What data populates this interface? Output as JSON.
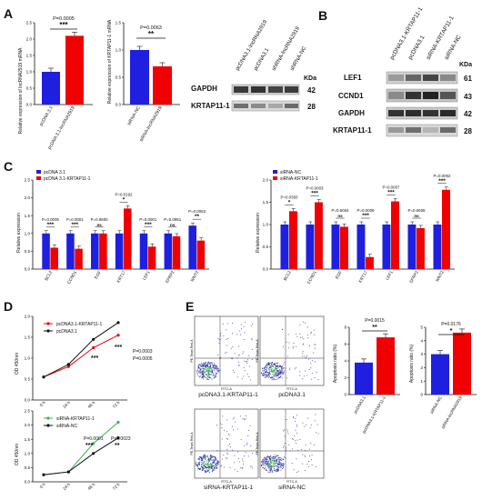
{
  "panels": {
    "A": "A",
    "B": "B",
    "C": "C",
    "D": "D",
    "E": "E"
  },
  "colors": {
    "blue": "#1f1fe0",
    "red": "#f00000",
    "green": "#39b54a",
    "black": "#111111",
    "dots": "#2f3a9e"
  },
  "a": {
    "chart1": {
      "ylabel": "Relative expression of lncRNA2919 mRNA",
      "categories": [
        "pcDNA 3.1",
        "pcDNA 3.1-lncRNA2919"
      ],
      "ticks": [
        "0.0",
        "0.5",
        "1.0",
        "1.5",
        "2.0",
        "2.5"
      ],
      "p": "P=0.0005",
      "stars": "***"
    },
    "chart2": {
      "ylabel": "Relative expression of KRTAP11-1 mRNA",
      "categories": [
        "siRNA-NC",
        "siRNA-lncRNA2919"
      ],
      "ticks": [
        "0.0",
        "0.5",
        "1.0",
        "1.5"
      ],
      "p": "P=0.0063",
      "stars": "**"
    },
    "blot": {
      "columns": [
        "pcDNA3.1-lncRNA2919",
        "pcDNA3.1",
        "shRNA-lncRNA2919",
        "shRNA-NC"
      ],
      "kda_label": "KDa",
      "rows": [
        {
          "label": "GAPDH",
          "kda": "42"
        },
        {
          "label": "KRTAP11-1",
          "kda": "28"
        }
      ]
    }
  },
  "b": {
    "columns": [
      "pcDNA3.1-KRTAP11-1",
      "pcDNA3.1",
      "siRNA-KRTAP11-1",
      "siRNA-NC"
    ],
    "kda_label": "KDa",
    "rows": [
      {
        "label": "LEF1",
        "kda": "61"
      },
      {
        "label": "CCND1",
        "kda": "43"
      },
      {
        "label": "GAPDH",
        "kda": "42"
      },
      {
        "label": "KRTAP11-1",
        "kda": "28"
      }
    ]
  },
  "c": {
    "left": {
      "legend": [
        "pcDNA 3.1",
        "pcDNA 3.1-KRTAP11-1"
      ],
      "ylabel": "Relative expression",
      "ticks": [
        "0.0",
        "0.5",
        "1.0",
        "1.5",
        "2.0",
        "2.5"
      ],
      "categories": [
        "BCL2",
        "CCND1",
        "EGF",
        "KRT17",
        "LEF1",
        "SFRP2",
        "WNT2"
      ],
      "p": [
        "P=0.0009",
        "P=0.0001",
        "P=0.9600",
        "P=0.0192",
        "P=0.0001",
        "P=0.0951",
        "P=0.0063"
      ],
      "sig": [
        "***",
        "***",
        "ns",
        "*",
        "***",
        "ns",
        "**"
      ]
    },
    "right": {
      "legend": [
        "siRNA-NC",
        "siRNA-KRTAP11-1"
      ],
      "ylabel": "Relative expression",
      "ticks": [
        "0.0",
        "0.5",
        "1.0",
        "1.5",
        "2.0"
      ],
      "categories": [
        "BCL2",
        "CCND1",
        "EGF",
        "KRT17",
        "LEF1",
        "SFRP2",
        "WNT2"
      ],
      "p": [
        "P=0.0350",
        "P=0.0003",
        "P=0.5064",
        "P=0.0009",
        "P=0.0007",
        "P=0.6606",
        "P=0.0002"
      ],
      "sig": [
        "*",
        "***",
        "ns",
        "***",
        "***",
        "ns",
        "***"
      ]
    }
  },
  "d": {
    "top": {
      "legend": [
        "pcDNA3.1-KRTAP11-1",
        "pcDNA3.1"
      ],
      "ylabel": "OD 450nm",
      "ticks": [
        "0.0",
        "0.5",
        "1.0",
        "1.5",
        "2.0"
      ],
      "xticks": [
        "0 h",
        "24 h",
        "48 h",
        "72 h"
      ],
      "p": [
        "P=0.0003",
        "P=0.0005"
      ],
      "stars": [
        "***",
        "***"
      ]
    },
    "bottom": {
      "legend": [
        "siRNA-KRTAP11-1",
        "siRNA-NC"
      ],
      "ylabel": "OD 450nm",
      "ticks": [
        "0.0",
        "0.5",
        "1.0",
        "1.5",
        "2.0",
        "2.5"
      ],
      "xticks": [
        "0 h",
        "24 h",
        "48 h",
        "72 h"
      ],
      "p": [
        "P=0.0001",
        "P=0.0023"
      ],
      "stars": [
        "***",
        "**"
      ]
    }
  },
  "e": {
    "flow": {
      "xaxis": "FITC-A",
      "yaxis": "PE-Texas Red-A",
      "plots": [
        {
          "title": "pcDNA3.1-KRTAP11-1"
        },
        {
          "title": "pcDNA3.1"
        },
        {
          "title": "siRNA-KRTAP11-1"
        },
        {
          "title": "siRNA-NC"
        }
      ]
    },
    "bar1": {
      "ylabel": "Apoptosis ratio (%)",
      "ticks": [
        "0",
        "2",
        "4",
        "6",
        "8"
      ],
      "categories": [
        "pcDNA3.1",
        "pcDNA3.1-KRTAP11-1"
      ],
      "p": "P=0.0015",
      "stars": "**"
    },
    "bar2": {
      "ylabel": "Apoptosis ratio (%)",
      "ticks": [
        "0",
        "1",
        "2",
        "3",
        "4",
        "5"
      ],
      "categories": [
        "siRNA-NC",
        "siRNA-lncRNA2919"
      ],
      "p": "P=0.0176",
      "stars": "*"
    }
  },
  "chart_data": [
    {
      "id": "A1",
      "type": "bar",
      "categories": [
        "pcDNA 3.1",
        "pcDNA 3.1-lncRNA2919"
      ],
      "values": [
        1.0,
        2.1
      ],
      "ylim": [
        0,
        2.5
      ]
    },
    {
      "id": "A2",
      "type": "bar",
      "categories": [
        "siRNA-NC",
        "siRNA-lncRNA2919"
      ],
      "values": [
        1.0,
        0.7
      ],
      "ylim": [
        0,
        1.5
      ]
    },
    {
      "id": "C1",
      "type": "bar",
      "categories": [
        "BCL2",
        "CCND1",
        "EGF",
        "KRT17",
        "LEF1",
        "SFRP2",
        "WNT2"
      ],
      "series": [
        {
          "name": "pcDNA 3.1",
          "values": [
            1.0,
            1.0,
            1.0,
            1.0,
            1.0,
            1.0,
            1.22
          ]
        },
        {
          "name": "pcDNA 3.1-KRTAP11-1",
          "values": [
            0.6,
            0.57,
            1.0,
            1.7,
            0.63,
            0.92,
            0.8
          ]
        }
      ],
      "ylim": [
        0,
        2.5
      ]
    },
    {
      "id": "C2",
      "type": "bar",
      "categories": [
        "BCL2",
        "CCND1",
        "EGF",
        "KRT17",
        "LEF1",
        "SFRP2",
        "WNT2"
      ],
      "series": [
        {
          "name": "siRNA-NC",
          "values": [
            1.0,
            1.0,
            1.0,
            1.0,
            1.0,
            1.0,
            1.0
          ]
        },
        {
          "name": "siRNA-KRTAP11-1",
          "values": [
            1.3,
            1.5,
            0.95,
            0.27,
            1.52,
            0.92,
            1.78
          ]
        }
      ],
      "ylim": [
        0,
        2.0
      ]
    },
    {
      "id": "D1",
      "type": "line",
      "x": [
        "0 h",
        "24 h",
        "48 h",
        "72 h"
      ],
      "series": [
        {
          "name": "pcDNA3.1-KRTAP11-1",
          "values": [
            0.55,
            0.8,
            1.25,
            1.55
          ]
        },
        {
          "name": "pcDNA3.1",
          "values": [
            0.55,
            0.85,
            1.45,
            1.85
          ]
        }
      ],
      "ylim": [
        0,
        2.0
      ]
    },
    {
      "id": "D2",
      "type": "line",
      "x": [
        "0 h",
        "24 h",
        "48 h",
        "72 h"
      ],
      "series": [
        {
          "name": "siRNA-KRTAP11-1",
          "values": [
            0.25,
            0.35,
            1.35,
            2.1
          ]
        },
        {
          "name": "siRNA-NC",
          "values": [
            0.25,
            0.35,
            1.0,
            1.55
          ]
        }
      ],
      "ylim": [
        0,
        2.5
      ]
    },
    {
      "id": "E1",
      "type": "bar",
      "categories": [
        "pcDNA3.1",
        "pcDNA3.1-KRTAP11-1"
      ],
      "values": [
        3.8,
        6.8
      ],
      "ylim": [
        0,
        8
      ]
    },
    {
      "id": "E2",
      "type": "bar",
      "categories": [
        "siRNA-NC",
        "siRNA-lncRNA2919"
      ],
      "values": [
        3.0,
        4.6
      ],
      "ylim": [
        0,
        5
      ]
    }
  ]
}
